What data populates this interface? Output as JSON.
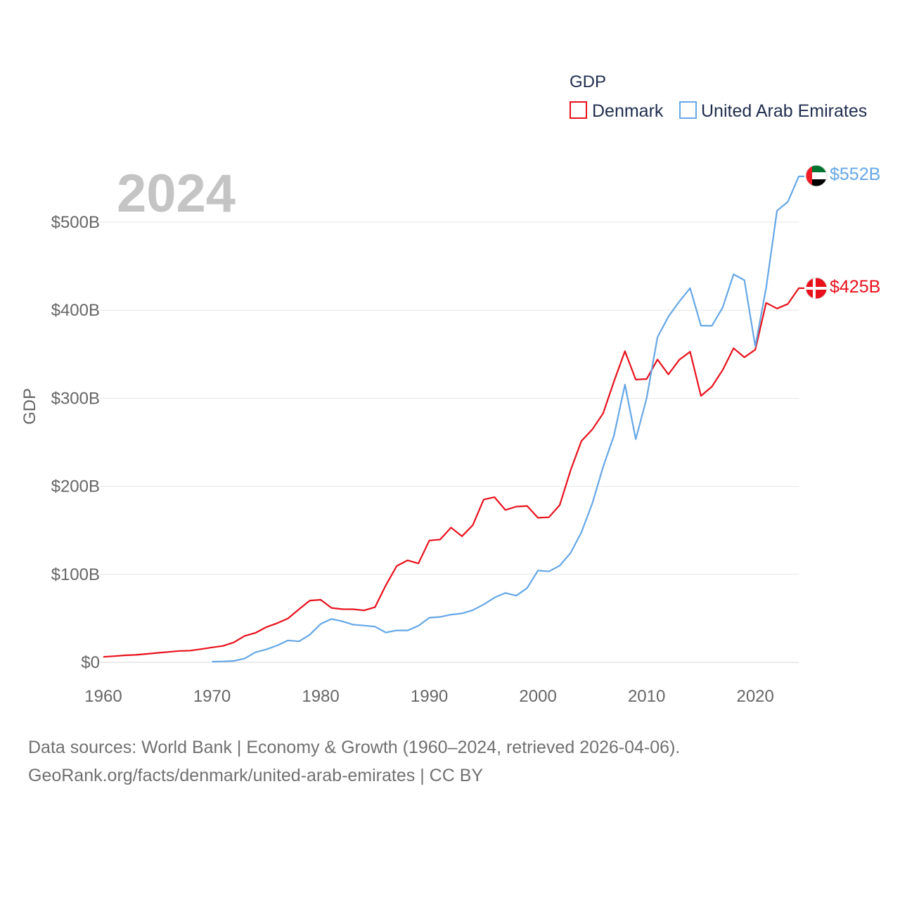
{
  "chart_data": {
    "type": "line",
    "current_year": "2024",
    "legend": {
      "title": "GDP",
      "placement": "top-right"
    },
    "ylabel": "GDP",
    "xlabel": "",
    "xlim": [
      1960,
      2024
    ],
    "ylim": [
      0,
      552
    ],
    "x_ticks": [
      1960,
      1970,
      1980,
      1990,
      2000,
      2010,
      2020
    ],
    "y_ticks": [
      {
        "value": 0,
        "label": "$0"
      },
      {
        "value": 100,
        "label": "$100B"
      },
      {
        "value": 200,
        "label": "$200B"
      },
      {
        "value": 300,
        "label": "$300B"
      },
      {
        "value": 400,
        "label": "$400B"
      },
      {
        "value": 500,
        "label": "$500B"
      }
    ],
    "value_unit": "billion USD",
    "series": [
      {
        "name": "Denmark",
        "color": "#e8101b",
        "end_label": "$425B",
        "flag": "denmark-flag",
        "x": [
          1960,
          1961,
          1962,
          1963,
          1964,
          1965,
          1966,
          1967,
          1968,
          1969,
          1970,
          1971,
          1972,
          1973,
          1974,
          1975,
          1976,
          1977,
          1978,
          1979,
          1980,
          1981,
          1982,
          1983,
          1984,
          1985,
          1986,
          1987,
          1988,
          1989,
          1990,
          1991,
          1992,
          1993,
          1994,
          1995,
          1996,
          1997,
          1998,
          1999,
          2000,
          2001,
          2002,
          2003,
          2004,
          2005,
          2006,
          2007,
          2008,
          2009,
          2010,
          2011,
          2012,
          2013,
          2014,
          2015,
          2016,
          2017,
          2018,
          2019,
          2020,
          2021,
          2022,
          2023,
          2024
        ],
        "values": [
          6.2,
          7.0,
          8.0,
          8.5,
          9.6,
          10.8,
          11.8,
          12.9,
          13.3,
          15.0,
          16.9,
          18.6,
          22.6,
          30.0,
          33.5,
          40.0,
          44.5,
          49.9,
          60.3,
          70.2,
          71.1,
          61.8,
          60.4,
          60.3,
          59.0,
          62.6,
          87.6,
          109.4,
          115.9,
          112.4,
          138.4,
          139.5,
          153.1,
          143.2,
          155.8,
          185.0,
          187.6,
          173.1,
          176.9,
          177.6,
          164.2,
          164.8,
          178.6,
          218.1,
          251.4,
          264.5,
          282.9,
          319.4,
          353.4,
          321.2,
          321.9,
          344.0,
          327.1,
          343.6,
          352.9,
          302.7,
          313.1,
          332.1,
          356.8,
          346.5,
          355.2,
          408.4,
          401.9,
          407.1,
          425.0
        ]
      },
      {
        "name": "United Arab Emirates",
        "color": "#65a7e6",
        "end_label": "$552B",
        "flag": "uae-flag",
        "x": [
          1970,
          1971,
          1972,
          1973,
          1974,
          1975,
          1976,
          1977,
          1978,
          1979,
          1980,
          1981,
          1982,
          1983,
          1984,
          1985,
          1986,
          1987,
          1988,
          1989,
          1990,
          1991,
          1992,
          1993,
          1994,
          1995,
          1996,
          1997,
          1998,
          1999,
          2000,
          2001,
          2002,
          2003,
          2004,
          2005,
          2006,
          2007,
          2008,
          2009,
          2010,
          2011,
          2012,
          2013,
          2014,
          2015,
          2016,
          2017,
          2018,
          2019,
          2020,
          2021,
          2022,
          2023,
          2024
        ],
        "values": [
          0.8,
          1.0,
          1.6,
          4.3,
          11.4,
          14.7,
          19.2,
          24.9,
          23.8,
          31.4,
          43.6,
          49.3,
          46.6,
          42.8,
          41.8,
          40.6,
          33.9,
          36.3,
          36.3,
          41.5,
          50.7,
          51.6,
          54.2,
          55.6,
          59.3,
          65.7,
          73.6,
          78.8,
          75.7,
          84.4,
          104.3,
          103.3,
          109.8,
          124.3,
          147.8,
          180.6,
          222.1,
          257.9,
          315.5,
          253.5,
          300.2,
          369.3,
          392.7,
          409.8,
          425.1,
          382.5,
          382.2,
          403.1,
          440.8,
          434.1,
          358.9,
          425.3,
          513.0,
          523.2,
          552.0
        ]
      }
    ]
  },
  "sources": {
    "line1": "Data sources: World Bank | Economy & Growth (1960–2024, retrieved 2026-04-06).",
    "line2": "GeoRank.org/facts/denmark/united-arab-emirates | CC BY"
  }
}
